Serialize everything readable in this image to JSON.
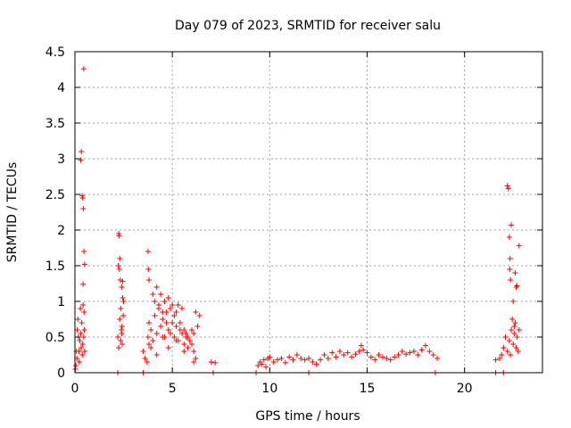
{
  "chart_data": {
    "type": "scatter",
    "title": "Day 079 of 2023, SRMTID for receiver salu",
    "xlabel": "GPS time / hours",
    "ylabel": "SRMTID / TECUs",
    "xlim": [
      0,
      24
    ],
    "ylim": [
      0,
      4.5
    ],
    "x_ticks": [
      0,
      5,
      10,
      15,
      20
    ],
    "x_tick_labels": [
      "0",
      "5",
      "10",
      "15",
      "20"
    ],
    "y_ticks": [
      0,
      0.5,
      1,
      1.5,
      2,
      2.5,
      3,
      3.5,
      4,
      4.5
    ],
    "y_tick_labels": [
      "0",
      "0.5",
      "1",
      "1.5",
      "2",
      "2.5",
      "3",
      "3.5",
      "4",
      "4.5"
    ],
    "grid": true,
    "marker": "+",
    "series": [
      {
        "name": "SRMTID",
        "color": "#ff0000",
        "x": [
          0.02,
          0.05,
          0.08,
          0.1,
          0.12,
          0.15,
          0.18,
          0.2,
          0.22,
          0.25,
          0.28,
          0.3,
          0.32,
          0.35,
          0.38,
          0.4,
          0.42,
          0.45,
          0.48,
          0.5,
          0.3,
          0.33,
          0.37,
          0.4,
          0.43,
          0.46,
          0.5,
          0.45,
          0.42,
          0.47,
          2.2,
          2.23,
          2.25,
          2.28,
          2.3,
          2.33,
          2.35,
          2.38,
          2.4,
          2.43,
          2.45,
          2.48,
          2.5,
          2.25,
          2.3,
          2.35,
          2.4,
          2.45,
          2.27,
          2.42,
          3.5,
          3.6,
          3.7,
          3.75,
          3.8,
          3.9,
          4.0,
          4.1,
          4.2,
          4.3,
          4.4,
          4.5,
          4.6,
          4.7,
          4.8,
          4.9,
          5.0,
          5.1,
          5.2,
          5.3,
          5.4,
          5.5,
          5.6,
          5.7,
          5.8,
          5.9,
          6.0,
          6.1,
          6.2,
          6.3,
          3.8,
          3.9,
          4.0,
          4.1,
          4.2,
          4.3,
          4.4,
          4.5,
          4.6,
          4.7,
          4.8,
          4.9,
          5.0,
          5.1,
          5.2,
          5.3,
          5.4,
          5.5,
          5.6,
          5.7,
          5.8,
          5.9,
          6.0,
          6.1,
          6.2,
          3.75,
          3.77,
          3.8,
          4.2,
          4.5,
          4.8,
          5.2,
          5.6,
          6.1,
          6.4,
          7.0,
          7.2,
          9.4,
          9.5,
          9.6,
          9.7,
          9.8,
          9.9,
          10.0,
          10.2,
          10.4,
          10.6,
          10.8,
          11.0,
          11.2,
          11.4,
          11.6,
          11.8,
          12.0,
          12.2,
          12.4,
          12.6,
          12.8,
          13.0,
          13.2,
          13.4,
          13.6,
          13.8,
          14.0,
          14.2,
          14.4,
          14.6,
          14.7,
          14.8,
          15.0,
          15.2,
          15.4,
          15.6,
          15.8,
          16.0,
          16.2,
          16.4,
          16.6,
          16.8,
          17.0,
          17.2,
          17.4,
          17.6,
          17.8,
          18.0,
          18.2,
          18.4,
          18.6,
          21.6,
          21.8,
          21.9,
          22.0,
          22.1,
          22.2,
          22.3,
          22.35,
          22.4,
          22.5,
          22.55,
          22.6,
          22.65,
          22.7,
          22.75,
          22.8,
          22.3,
          22.32,
          22.34,
          22.36,
          22.2,
          22.4,
          22.6,
          22.7,
          22.5,
          22.45,
          22.55,
          22.8,
          22.65,
          22.25,
          2.2,
          3.5,
          7.1,
          9.3,
          12.0,
          18.5,
          21.6,
          22.0
        ],
        "y": [
          0.05,
          0.1,
          0.3,
          0.2,
          0.6,
          0.75,
          0.5,
          0.3,
          0.15,
          0.45,
          0.9,
          0.55,
          0.35,
          0.7,
          0.25,
          0.4,
          0.95,
          0.5,
          0.6,
          0.3,
          2.98,
          3.1,
          2.48,
          2.45,
          2.3,
          1.7,
          1.52,
          4.26,
          1.24,
          0.85,
          0.5,
          1.5,
          1.95,
          1.45,
          1.6,
          1.3,
          0.9,
          0.6,
          1.2,
          0.4,
          1.05,
          0.8,
          1.0,
          0.35,
          0.75,
          0.45,
          0.55,
          1.28,
          1.92,
          0.65,
          0.3,
          0.2,
          0.15,
          0.5,
          0.7,
          0.6,
          0.45,
          0.8,
          0.55,
          0.9,
          0.65,
          0.75,
          0.5,
          0.85,
          0.6,
          0.55,
          0.7,
          0.5,
          0.65,
          0.45,
          0.6,
          0.55,
          0.4,
          0.5,
          0.35,
          0.45,
          0.4,
          0.3,
          0.2,
          0.65,
          0.4,
          0.35,
          1.1,
          1.0,
          1.2,
          0.95,
          1.1,
          0.85,
          1.0,
          0.7,
          1.05,
          0.9,
          0.95,
          0.8,
          0.85,
          0.95,
          0.7,
          0.9,
          0.6,
          0.55,
          0.5,
          0.45,
          0.6,
          0.55,
          0.85,
          1.7,
          1.45,
          1.3,
          0.25,
          0.5,
          0.35,
          0.45,
          0.3,
          0.15,
          0.8,
          0.15,
          0.14,
          0.1,
          0.15,
          0.12,
          0.18,
          0.08,
          0.2,
          0.22,
          0.15,
          0.18,
          0.2,
          0.14,
          0.22,
          0.18,
          0.25,
          0.2,
          0.18,
          0.2,
          0.15,
          0.12,
          0.18,
          0.25,
          0.2,
          0.28,
          0.22,
          0.3,
          0.25,
          0.28,
          0.22,
          0.26,
          0.3,
          0.38,
          0.32,
          0.28,
          0.22,
          0.18,
          0.25,
          0.22,
          0.2,
          0.18,
          0.22,
          0.25,
          0.3,
          0.26,
          0.28,
          0.3,
          0.25,
          0.32,
          0.38,
          0.3,
          0.25,
          0.2,
          0.18,
          0.2,
          0.25,
          0.35,
          0.5,
          0.3,
          0.45,
          0.25,
          0.6,
          0.4,
          0.55,
          0.7,
          0.35,
          0.5,
          0.3,
          0.6,
          1.9,
          1.45,
          1.6,
          1.3,
          2.62,
          2.07,
          1.4,
          1.22,
          1.0,
          0.75,
          0.65,
          1.78,
          1.2,
          2.58,
          0.0,
          0.0,
          0.0,
          0.0,
          0.0,
          0.0,
          0.0,
          0.0
        ]
      }
    ]
  }
}
